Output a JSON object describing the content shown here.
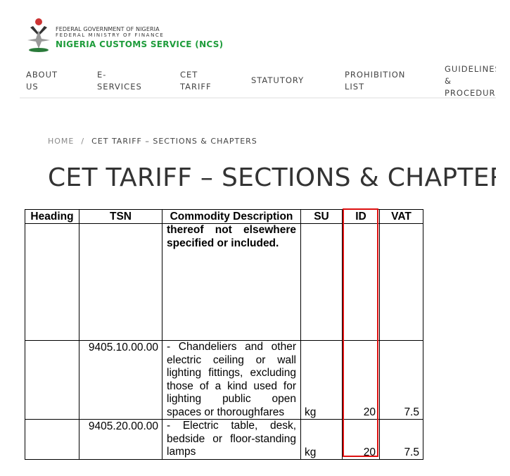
{
  "header": {
    "org_line1": "FEDERAL GOVERNMENT OF NIGERIA",
    "org_line2": "FEDERAL MINISTRY OF FINANCE",
    "org_line3": "NIGERIA CUSTOMS SERVICE (NCS)",
    "brand_color": "#1e9c3b"
  },
  "nav": [
    {
      "label": "ABOUT US"
    },
    {
      "label": "E- SERVICES"
    },
    {
      "label": "CET TARIFF"
    },
    {
      "label": "STATUTORY"
    },
    {
      "label": "PROHIBITION LIST"
    },
    {
      "label": "GUIDELINES & PROCEDURES"
    }
  ],
  "breadcrumb": {
    "home": "HOME",
    "separator": "/",
    "current": "CET TARIFF – SECTIONS & CHAPTERS"
  },
  "page_title": "CET TARIFF – SECTIONS & CHAPTERS",
  "table": {
    "headers": [
      "Heading",
      "TSN",
      "Commodity Description",
      "SU",
      "ID",
      "VAT"
    ],
    "rows": [
      {
        "heading": "",
        "tsn": "",
        "desc": "thereof not elsewhere specified or included.",
        "su": "",
        "id": "",
        "vat": ""
      },
      {
        "heading": "",
        "tsn": "9405.10.00.00",
        "desc": "- Chandeliers and other electric ceiling or wall lighting fittings, excluding those of a kind used for lighting public open spaces or thoroughfares",
        "su": "kg",
        "id": "20",
        "vat": "7.5"
      },
      {
        "heading": "",
        "tsn": "9405.20.00.00",
        "desc": "- Electric table, desk, bedside or floor-standing lamps",
        "su": "kg",
        "id": "20",
        "vat": "7.5"
      }
    ],
    "highlight_column": "ID",
    "highlight_color": "#d11111"
  }
}
